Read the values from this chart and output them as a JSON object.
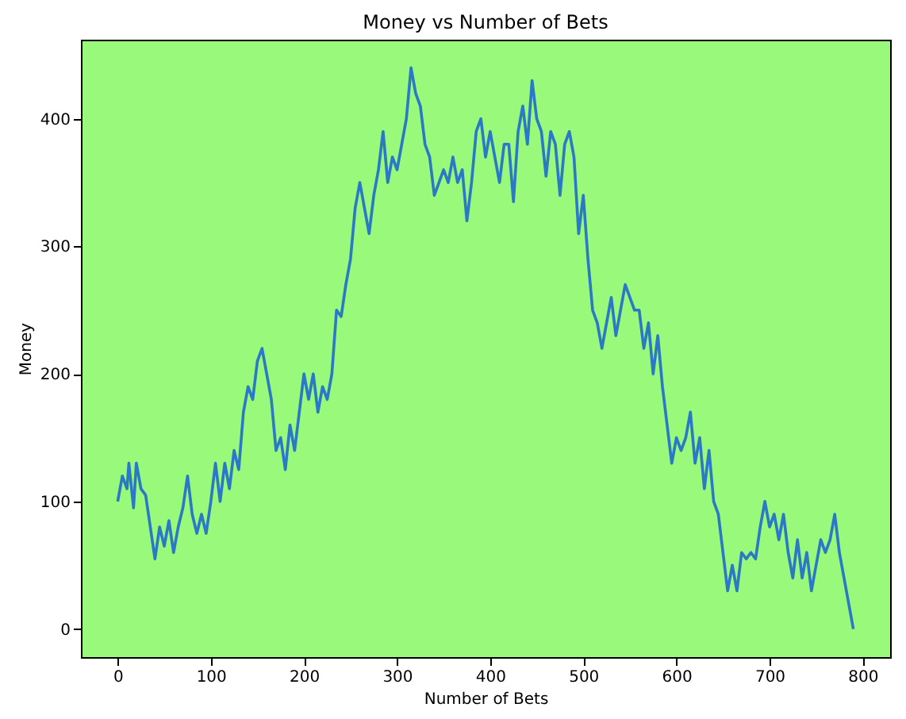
{
  "chart_data": {
    "type": "line",
    "title": "Money vs Number of Bets",
    "xlabel": "Number of Bets",
    "ylabel": "Money",
    "x": [
      0,
      5,
      10,
      12,
      17,
      20,
      25,
      30,
      35,
      40,
      45,
      50,
      55,
      60,
      65,
      70,
      75,
      80,
      85,
      90,
      95,
      100,
      105,
      110,
      115,
      120,
      125,
      130,
      135,
      140,
      145,
      150,
      155,
      160,
      165,
      170,
      175,
      180,
      185,
      190,
      195,
      200,
      205,
      210,
      215,
      220,
      225,
      230,
      235,
      240,
      245,
      250,
      255,
      260,
      265,
      270,
      275,
      280,
      285,
      290,
      295,
      300,
      305,
      310,
      315,
      320,
      325,
      330,
      335,
      340,
      345,
      350,
      355,
      360,
      365,
      370,
      375,
      380,
      385,
      390,
      395,
      400,
      405,
      410,
      415,
      420,
      425,
      430,
      435,
      440,
      445,
      450,
      455,
      460,
      465,
      470,
      475,
      480,
      485,
      490,
      495,
      500,
      505,
      510,
      515,
      520,
      525,
      530,
      535,
      540,
      545,
      550,
      555,
      560,
      565,
      570,
      575,
      580,
      585,
      590,
      595,
      600,
      605,
      610,
      615,
      620,
      625,
      630,
      635,
      640,
      645,
      650,
      655,
      660,
      665,
      670,
      675,
      680,
      685,
      690,
      695,
      700,
      705,
      710,
      715,
      720,
      725,
      730,
      735,
      740,
      745,
      750,
      755,
      760,
      765,
      770,
      775,
      780,
      785,
      790
    ],
    "series": [
      {
        "color": "#2a78c6",
        "values": [
          100,
          120,
          110,
          130,
          95,
          130,
          110,
          105,
          80,
          55,
          80,
          65,
          85,
          60,
          80,
          95,
          120,
          90,
          75,
          90,
          75,
          100,
          130,
          100,
          130,
          110,
          140,
          125,
          170,
          190,
          180,
          210,
          220,
          200,
          180,
          140,
          150,
          125,
          160,
          140,
          170,
          200,
          180,
          200,
          170,
          190,
          180,
          200,
          250,
          245,
          270,
          290,
          330,
          350,
          330,
          310,
          340,
          360,
          390,
          350,
          370,
          360,
          380,
          400,
          440,
          420,
          410,
          380,
          370,
          340,
          350,
          360,
          350,
          370,
          350,
          360,
          320,
          350,
          390,
          400,
          370,
          390,
          370,
          350,
          380,
          380,
          335,
          390,
          410,
          380,
          430,
          400,
          390,
          355,
          390,
          380,
          340,
          380,
          390,
          370,
          310,
          340,
          290,
          250,
          240,
          220,
          240,
          260,
          230,
          250,
          270,
          260,
          250,
          250,
          220,
          240,
          200,
          230,
          190,
          160,
          130,
          150,
          140,
          150,
          170,
          130,
          150,
          110,
          140,
          100,
          90,
          60,
          30,
          50,
          30,
          60,
          55,
          60,
          55,
          80,
          100,
          80,
          90,
          70,
          90,
          60,
          40,
          70,
          40,
          60,
          30,
          50,
          70,
          60,
          70,
          90,
          60,
          40,
          20,
          0
        ]
      }
    ],
    "xlim": [
      -39.5,
      829.5
    ],
    "ylim": [
      -22,
      462
    ],
    "xticks": [
      0,
      100,
      200,
      300,
      400,
      500,
      600,
      700,
      800
    ],
    "yticks": [
      0,
      100,
      200,
      300,
      400
    ],
    "grid": false,
    "line_style": "solid",
    "marker": "none"
  }
}
